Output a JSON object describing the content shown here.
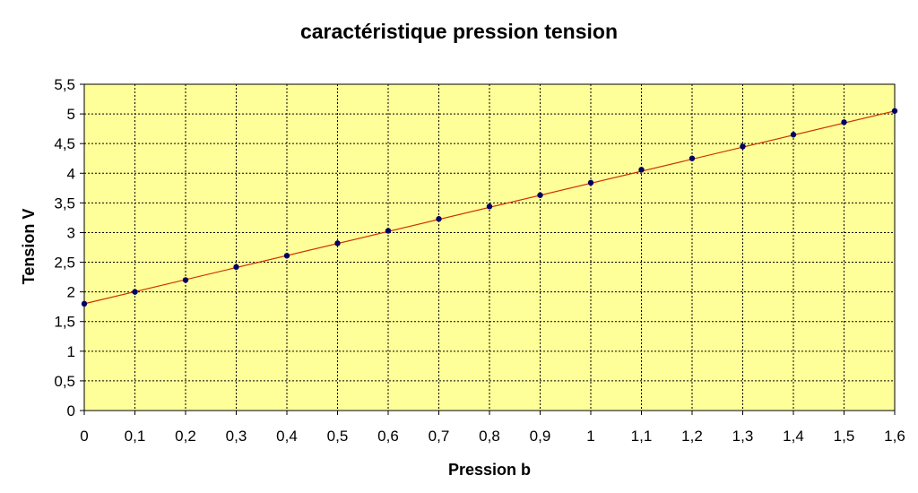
{
  "chart_data": {
    "type": "scatter",
    "title": "caractéristique pression tension",
    "xlabel": "Pression b",
    "ylabel": "Tension V",
    "xlim": [
      0,
      1.6
    ],
    "ylim": [
      0,
      5.5
    ],
    "x_ticks": [
      "0",
      "0,1",
      "0,2",
      "0,3",
      "0,4",
      "0,5",
      "0,6",
      "0,7",
      "0,8",
      "0,9",
      "1",
      "1,1",
      "1,2",
      "1,3",
      "1,4",
      "1,5",
      "1,6"
    ],
    "y_ticks": [
      "0",
      "0,5",
      "1",
      "1,5",
      "2",
      "2,5",
      "3",
      "3,5",
      "4",
      "4,5",
      "5",
      "5,5"
    ],
    "grid": true,
    "series": [
      {
        "x": [
          0,
          0.1,
          0.2,
          0.3,
          0.4,
          0.5,
          0.6,
          0.7,
          0.8,
          0.9,
          1.0,
          1.1,
          1.2,
          1.3,
          1.4,
          1.5,
          1.6
        ],
        "y": [
          1.8,
          2.0,
          2.2,
          2.42,
          2.61,
          2.82,
          3.03,
          3.23,
          3.44,
          3.63,
          3.84,
          4.06,
          4.25,
          4.45,
          4.65,
          4.86,
          5.05
        ]
      }
    ],
    "trendline": {
      "x": [
        0,
        1.6
      ],
      "y": [
        1.8,
        5.05
      ]
    },
    "colors": {
      "plot_background": "#ffff99",
      "marker": "#000066",
      "trendline": "#cc3300",
      "grid": "#000000"
    }
  }
}
